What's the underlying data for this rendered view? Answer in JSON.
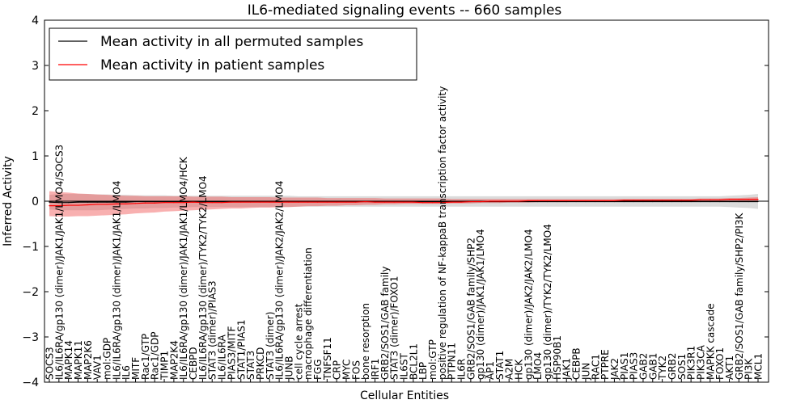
{
  "chart_data": {
    "type": "line",
    "title": "IL6-mediated signaling events -- 660 samples",
    "xlabel": "Cellular Entities",
    "ylabel": "Inferred Activity",
    "ylim": [
      -4,
      4
    ],
    "yticks": [
      -4,
      -3,
      -2,
      -1,
      0,
      1,
      2,
      3,
      4
    ],
    "ytick_labels": [
      "−4",
      "−3",
      "−2",
      "−1",
      "0",
      "1",
      "2",
      "3",
      "4"
    ],
    "legend_position": "top-left",
    "categories": [
      "SOCS3",
      "IL6/IL6RA/gp130 (dimer)/JAK1/JAK1/LMO4/SOCS3",
      "MAPK14",
      "MAPK11",
      "MAP2K6",
      "VAV1",
      "mol:GDP",
      "IL6/IL6RA/gp130 (dimer)/JAK1/JAK1/LMO4",
      "IL6",
      "MITF",
      "Rac1/GTP",
      "Rac1/GDP",
      "TIMP1",
      "MAP2K4",
      "IL6/IL6RA/gp130 (dimer)/JAK1/JAK1/LMO4/HCK",
      "CEBPD",
      "IL6/IL6RA/gp130 (dimer)/TYK2/TYK2/LMO4",
      "STAT3 (dimer)/PIAS3",
      "IL6/IL6RA",
      "PIAS3/MITF",
      "STAT1/PIAS1",
      "STAT3",
      "PRKCD",
      "STAT3 (dimer)",
      "IL6/IL6RA/gp130 (dimer)/JAK2/JAK2/LMO4",
      "JUNB",
      "cell cycle arrest",
      "macrophage differentiation",
      "FGG",
      "TNFSF11",
      "CRP",
      "MYC",
      "FOS",
      "bone resorption",
      "IRF1",
      "GRB2/SOS1/GAB family",
      "STAT3 (dimer)/FOXO1",
      "IL6ST",
      "BCL2L1",
      "LBP",
      "mol:GTP",
      "positive regulation of NF-kappaB transcription factor activity",
      "PTPN11",
      "IL6R",
      "GRB2/SOS1/GAB family/SHP2",
      "gp130 (dimer)/JAK1/JAK1/LMO4",
      "AP1",
      "STAT1",
      "A2M",
      "HCK",
      "gp130 (dimer)/JAK2/JAK2/LMO4",
      "LMO4",
      "gp130 (dimer)/TYK2/TYK2/LMO4",
      "HSP90B1",
      "JAK1",
      "CEBPB",
      "JUN",
      "RAC1",
      "PTPRE",
      "JAK2",
      "PIAS1",
      "PIAS3",
      "GAB2",
      "GAB1",
      "TYK2",
      "GRB2",
      "SOS1",
      "PIK3R1",
      "PIK3CA",
      "MAPKK cascade",
      "FOXO1",
      "AKT1",
      "GRB2/SOS1/GAB family/SHP2/PI3K",
      "PI3K",
      "MCL1"
    ],
    "series": [
      {
        "name": "Mean activity in all permuted samples",
        "color": "#000000",
        "values": [
          -0.02,
          -0.03,
          -0.03,
          -0.02,
          -0.02,
          -0.02,
          -0.02,
          -0.02,
          -0.02,
          -0.01,
          -0.01,
          -0.01,
          -0.01,
          -0.01,
          -0.01,
          -0.01,
          -0.01,
          -0.01,
          -0.01,
          -0.01,
          -0.01,
          -0.01,
          -0.01,
          -0.01,
          -0.01,
          -0.01,
          -0.01,
          -0.01,
          -0.01,
          -0.01,
          -0.01,
          -0.01,
          -0.01,
          -0.01,
          -0.01,
          -0.01,
          -0.01,
          -0.01,
          -0.01,
          -0.01,
          -0.01,
          -0.01,
          -0.01,
          -0.01,
          -0.01,
          -0.01,
          -0.01,
          -0.01,
          -0.01,
          -0.01,
          -0.01,
          -0.01,
          -0.01,
          -0.01,
          -0.01,
          -0.01,
          -0.01,
          -0.01,
          -0.01,
          -0.01,
          -0.01,
          -0.01,
          -0.01,
          -0.01,
          -0.01,
          -0.01,
          -0.01,
          -0.01,
          -0.01,
          -0.01,
          -0.01,
          -0.01,
          -0.01,
          -0.01,
          -0.01
        ],
        "lower": [
          -0.18,
          -0.2,
          -0.2,
          -0.2,
          -0.2,
          -0.2,
          -0.19,
          -0.18,
          -0.17,
          -0.16,
          -0.16,
          -0.15,
          -0.15,
          -0.14,
          -0.14,
          -0.13,
          -0.13,
          -0.13,
          -0.13,
          -0.13,
          -0.13,
          -0.13,
          -0.13,
          -0.13,
          -0.13,
          -0.13,
          -0.12,
          -0.12,
          -0.12,
          -0.12,
          -0.12,
          -0.12,
          -0.12,
          -0.12,
          -0.12,
          -0.12,
          -0.12,
          -0.12,
          -0.12,
          -0.12,
          -0.12,
          -0.12,
          -0.12,
          -0.12,
          -0.12,
          -0.12,
          -0.12,
          -0.12,
          -0.12,
          -0.12,
          -0.12,
          -0.12,
          -0.12,
          -0.12,
          -0.12,
          -0.12,
          -0.12,
          -0.12,
          -0.12,
          -0.12,
          -0.12,
          -0.12,
          -0.12,
          -0.12,
          -0.12,
          -0.12,
          -0.12,
          -0.12,
          -0.12,
          -0.12,
          -0.12,
          -0.13,
          -0.14,
          -0.15,
          -0.17
        ],
        "upper": [
          0.14,
          0.16,
          0.16,
          0.16,
          0.16,
          0.15,
          0.15,
          0.14,
          0.14,
          0.13,
          0.13,
          0.13,
          0.13,
          0.12,
          0.12,
          0.12,
          0.12,
          0.12,
          0.12,
          0.12,
          0.12,
          0.12,
          0.12,
          0.12,
          0.12,
          0.12,
          0.11,
          0.11,
          0.11,
          0.11,
          0.11,
          0.11,
          0.11,
          0.11,
          0.11,
          0.11,
          0.11,
          0.11,
          0.11,
          0.11,
          0.11,
          0.11,
          0.11,
          0.11,
          0.11,
          0.11,
          0.11,
          0.11,
          0.11,
          0.11,
          0.11,
          0.11,
          0.11,
          0.11,
          0.11,
          0.11,
          0.11,
          0.11,
          0.11,
          0.11,
          0.11,
          0.11,
          0.11,
          0.11,
          0.11,
          0.11,
          0.11,
          0.11,
          0.11,
          0.11,
          0.11,
          0.12,
          0.13,
          0.14,
          0.16
        ]
      },
      {
        "name": "Mean activity in patient samples",
        "color": "#ff0000",
        "values": [
          -0.1,
          -0.1,
          -0.09,
          -0.09,
          -0.08,
          -0.07,
          -0.07,
          -0.06,
          -0.06,
          -0.05,
          -0.04,
          -0.04,
          -0.03,
          -0.03,
          -0.03,
          -0.02,
          -0.03,
          -0.03,
          -0.03,
          -0.02,
          -0.02,
          -0.02,
          -0.02,
          -0.02,
          -0.02,
          -0.02,
          -0.02,
          -0.02,
          -0.02,
          -0.02,
          -0.02,
          -0.02,
          -0.02,
          -0.01,
          -0.02,
          -0.02,
          -0.02,
          -0.02,
          -0.02,
          -0.03,
          -0.03,
          -0.03,
          -0.02,
          -0.02,
          -0.01,
          -0.01,
          0.0,
          0.0,
          0.0,
          0.0,
          0.01,
          0.01,
          0.01,
          0.01,
          0.01,
          0.01,
          0.01,
          0.01,
          0.01,
          0.01,
          0.02,
          0.02,
          0.02,
          0.02,
          0.02,
          0.02,
          0.02,
          0.02,
          0.03,
          0.03,
          0.03,
          0.04,
          0.04,
          0.04,
          0.04
        ],
        "lower": [
          -0.33,
          -0.34,
          -0.34,
          -0.33,
          -0.33,
          -0.32,
          -0.31,
          -0.3,
          -0.29,
          -0.27,
          -0.26,
          -0.25,
          -0.23,
          -0.22,
          -0.21,
          -0.2,
          -0.19,
          -0.18,
          -0.17,
          -0.16,
          -0.16,
          -0.15,
          -0.14,
          -0.14,
          -0.13,
          -0.13,
          -0.12,
          -0.11,
          -0.11,
          -0.1,
          -0.1,
          -0.09,
          -0.09,
          -0.08,
          -0.08,
          -0.07,
          -0.07,
          -0.06,
          -0.06,
          -0.06,
          -0.06,
          -0.06,
          -0.05,
          -0.05,
          -0.05,
          -0.04,
          -0.04,
          -0.04,
          -0.03,
          -0.03,
          -0.03,
          -0.02,
          -0.02,
          -0.02,
          -0.02,
          -0.01,
          -0.01,
          -0.01,
          -0.01,
          -0.01,
          -0.01,
          -0.01,
          0.0,
          0.0,
          0.0,
          0.0,
          0.0,
          0.0,
          0.0,
          0.0,
          0.0,
          0.0,
          0.0,
          0.0,
          0.0
        ],
        "upper": [
          0.22,
          0.2,
          0.19,
          0.17,
          0.16,
          0.15,
          0.14,
          0.13,
          0.12,
          0.12,
          0.11,
          0.11,
          0.11,
          0.11,
          0.11,
          0.1,
          0.1,
          0.1,
          0.1,
          0.09,
          0.09,
          0.09,
          0.09,
          0.09,
          0.08,
          0.08,
          0.08,
          0.08,
          0.08,
          0.07,
          0.07,
          0.07,
          0.07,
          0.07,
          0.07,
          0.06,
          0.06,
          0.06,
          0.06,
          0.06,
          0.06,
          0.06,
          0.05,
          0.05,
          0.05,
          0.05,
          0.05,
          0.05,
          0.05,
          0.05,
          0.05,
          0.05,
          0.05,
          0.05,
          0.05,
          0.05,
          0.05,
          0.05,
          0.05,
          0.05,
          0.05,
          0.05,
          0.05,
          0.05,
          0.05,
          0.05,
          0.05,
          0.05,
          0.06,
          0.06,
          0.06,
          0.07,
          0.07,
          0.08,
          0.09
        ]
      }
    ]
  }
}
